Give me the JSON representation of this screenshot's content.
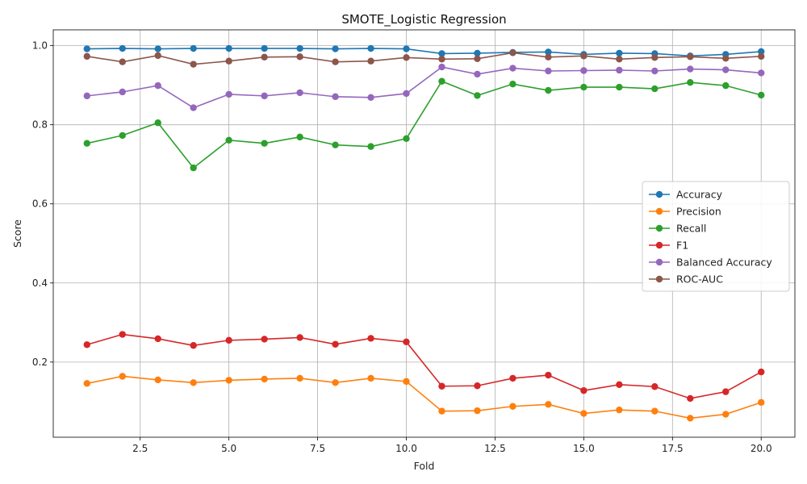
{
  "chart_data": {
    "type": "line",
    "title": "SMOTE_Logistic Regression",
    "xlabel": "Fold",
    "ylabel": "Score",
    "x": [
      1,
      2,
      3,
      4,
      5,
      6,
      7,
      8,
      9,
      10,
      11,
      12,
      13,
      14,
      15,
      16,
      17,
      18,
      19,
      20
    ],
    "xlim": [
      0.05,
      20.95
    ],
    "ylim": [
      0.01,
      1.04
    ],
    "xticks": [
      2.5,
      5.0,
      7.5,
      10.0,
      12.5,
      15.0,
      17.5,
      20.0
    ],
    "xtick_labels": [
      "2.5",
      "5.0",
      "7.5",
      "10.0",
      "12.5",
      "15.0",
      "17.5",
      "20.0"
    ],
    "yticks": [
      0.2,
      0.4,
      0.6,
      0.8,
      1.0
    ],
    "ytick_labels": [
      "0.2",
      "0.4",
      "0.6",
      "0.8",
      "1.0"
    ],
    "grid": true,
    "legend_position": "center-right",
    "series": [
      {
        "name": "Accuracy",
        "color": "#1f77b4",
        "values": [
          0.992,
          0.993,
          0.992,
          0.993,
          0.993,
          0.993,
          0.993,
          0.992,
          0.993,
          0.992,
          0.98,
          0.981,
          0.983,
          0.984,
          0.978,
          0.981,
          0.98,
          0.974,
          0.978,
          0.985
        ]
      },
      {
        "name": "Precision",
        "color": "#ff7f0e",
        "values": [
          0.146,
          0.164,
          0.155,
          0.148,
          0.154,
          0.157,
          0.159,
          0.148,
          0.159,
          0.151,
          0.076,
          0.077,
          0.088,
          0.093,
          0.07,
          0.079,
          0.076,
          0.058,
          0.068,
          0.098
        ]
      },
      {
        "name": "Recall",
        "color": "#2ca02c",
        "values": [
          0.753,
          0.773,
          0.805,
          0.691,
          0.761,
          0.753,
          0.769,
          0.749,
          0.745,
          0.765,
          0.91,
          0.874,
          0.903,
          0.887,
          0.895,
          0.895,
          0.891,
          0.907,
          0.899,
          0.875
        ]
      },
      {
        "name": "F1",
        "color": "#d62728",
        "values": [
          0.244,
          0.27,
          0.259,
          0.242,
          0.255,
          0.258,
          0.262,
          0.245,
          0.26,
          0.251,
          0.139,
          0.14,
          0.159,
          0.167,
          0.128,
          0.143,
          0.138,
          0.108,
          0.125,
          0.175
        ]
      },
      {
        "name": "Balanced Accuracy",
        "color": "#9467bd",
        "values": [
          0.873,
          0.883,
          0.899,
          0.843,
          0.877,
          0.873,
          0.881,
          0.871,
          0.869,
          0.879,
          0.946,
          0.928,
          0.943,
          0.936,
          0.937,
          0.938,
          0.936,
          0.941,
          0.939,
          0.931
        ]
      },
      {
        "name": "ROC-AUC",
        "color": "#8c564b",
        "values": [
          0.973,
          0.959,
          0.975,
          0.953,
          0.961,
          0.971,
          0.972,
          0.959,
          0.961,
          0.97,
          0.966,
          0.967,
          0.982,
          0.971,
          0.974,
          0.966,
          0.97,
          0.972,
          0.968,
          0.973
        ]
      }
    ]
  }
}
